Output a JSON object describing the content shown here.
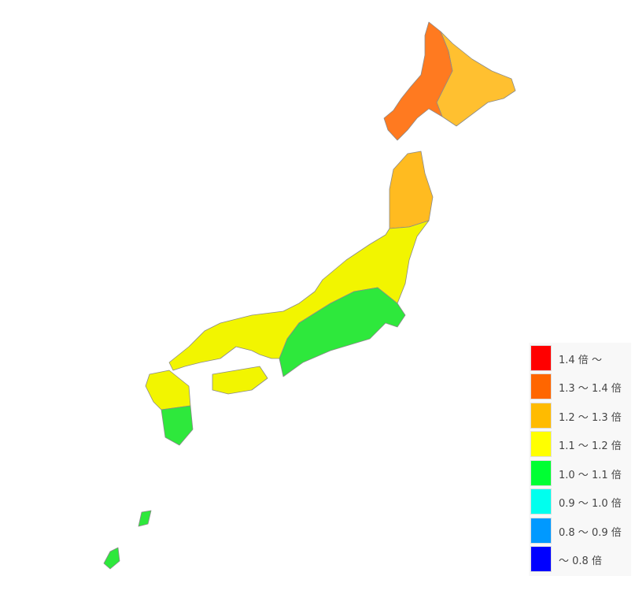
{
  "legend": {
    "items": [
      {
        "label": "1.4 倍 ～",
        "color": "#ff0000"
      },
      {
        "label": "1.3 ～ 1.4 倍",
        "color": "#ff6600"
      },
      {
        "label": "1.2 ～ 1.3 倍",
        "color": "#ffbb00"
      },
      {
        "label": "1.1 ～ 1.2 倍",
        "color": "#ffff00"
      },
      {
        "label": "1.0 ～ 1.1 倍",
        "color": "#00ff33"
      },
      {
        "label": "0.9 ～ 1.0 倍",
        "color": "#00ffee"
      },
      {
        "label": "0.8 ～ 0.9 倍",
        "color": "#0099ff"
      },
      {
        "label": "～ 0.8 倍",
        "color": "#0000ff"
      }
    ]
  },
  "map": {
    "regions": [
      {
        "name": "hokkaido-west",
        "class": "1.3 ～ 1.4 倍"
      },
      {
        "name": "hokkaido-east",
        "class": "1.2 ～ 1.3 倍"
      },
      {
        "name": "tohoku-north",
        "class": "1.2 ～ 1.3 倍"
      },
      {
        "name": "honshu-central",
        "class": "1.1 ～ 1.2 倍"
      },
      {
        "name": "kanto-tokai-kinki-south",
        "class": "1.0 ～ 1.1 倍"
      },
      {
        "name": "shikoku",
        "class": "1.1 ～ 1.2 倍"
      },
      {
        "name": "kyushu-north",
        "class": "1.1 ～ 1.2 倍"
      },
      {
        "name": "kyushu-south",
        "class": "1.0 ～ 1.1 倍"
      },
      {
        "name": "okinawa",
        "class": "1.0 ～ 1.1 倍"
      }
    ]
  }
}
